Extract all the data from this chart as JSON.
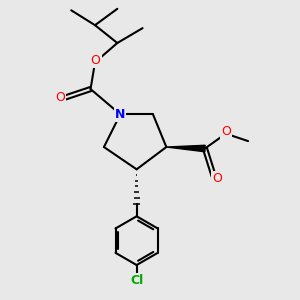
{
  "bg_color": "#e8e8e8",
  "atom_colors": {
    "N": "#0000ff",
    "O": "#ff0000",
    "Cl": "#00aa00",
    "C": "#000000"
  },
  "bond_color": "#000000",
  "bond_width": 1.5
}
